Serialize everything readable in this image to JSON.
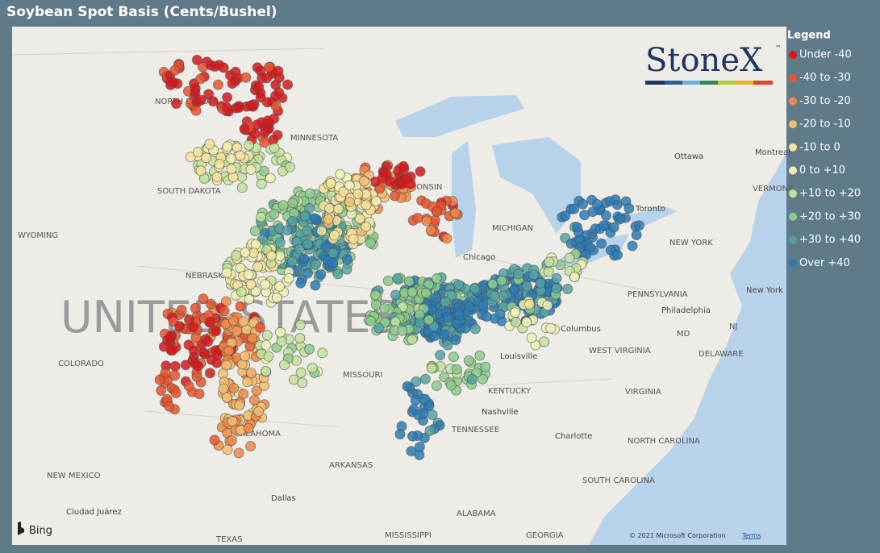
{
  "header": {
    "title": "Soybean Spot Basis (Cents/Bushel)"
  },
  "legend": {
    "title": "Legend",
    "items": [
      {
        "label": "Under -40",
        "color": "#d7191c"
      },
      {
        "label": "-40 to -30",
        "color": "#e8552d"
      },
      {
        "label": "-30 to -20",
        "color": "#f08a45"
      },
      {
        "label": "-20 to -10",
        "color": "#f6bd6f"
      },
      {
        "label": "-10 to 0",
        "color": "#f8e39a"
      },
      {
        "label": "0 to +10",
        "color": "#eef2b4"
      },
      {
        "label": "+10 to +20",
        "color": "#c3e29b"
      },
      {
        "label": "+20 to +30",
        "color": "#8ccb8c"
      },
      {
        "label": "+30 to +40",
        "color": "#52a3a3"
      },
      {
        "label": "Over +40",
        "color": "#2c7bb6"
      }
    ]
  },
  "logo": {
    "name": "StoneX",
    "mark": "™"
  },
  "map": {
    "country": "UNITED STATES",
    "labels": [
      "NORTH DAKOTA",
      "MINNESOTA",
      "SOUTH DAKOTA",
      "WYOMING",
      "NEBRASKA",
      "COLORADO",
      "MISSOURI",
      "KENTUCKY",
      "TENNESSEE",
      "OKLAHOMA",
      "ARKANSAS",
      "NEW MEXICO",
      "Dallas",
      "Ciudad Juárez",
      "TEXAS",
      "MISSISSIPPI",
      "ALABAMA",
      "GEORGIA",
      "SOUTH CAROLINA",
      "NORTH CAROLINA",
      "VIRGINIA",
      "WEST VIRGINIA",
      "PENNSYLVANIA",
      "NEW YORK",
      "Philadelphia",
      "New York",
      "Ottawa",
      "Toronto",
      "Chicago",
      "MICHIGAN",
      "WISCONSIN",
      "Columbus",
      "Louisville",
      "Nashville",
      "Charlotte",
      "Montreal",
      "DELAWARE",
      "MD",
      "NJ",
      "VERMONT"
    ]
  },
  "footer": {
    "provider": "Bing",
    "copyright": "© 2021 Microsoft Corporation",
    "terms": "Terms"
  }
}
